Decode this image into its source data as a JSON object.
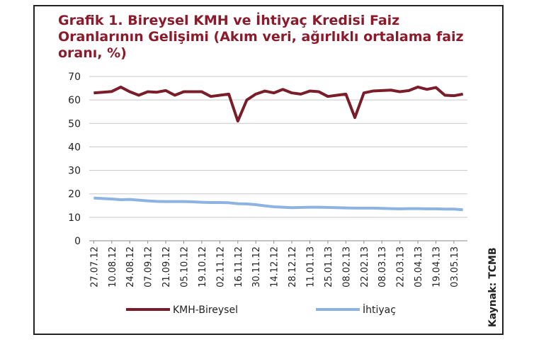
{
  "chart_data": {
    "type": "line",
    "title": "Grafik 1. Bireysel KMH ve İhtiyaç Kredisi Faiz Oranlarının Gelişimi (Akım veri, ağırlıklı ortalama faiz oranı, %)",
    "source": "Kaynak: TCMB",
    "categories": [
      "27.07.12",
      null,
      "10.08.12",
      null,
      "24.08.12",
      null,
      "07.09.12",
      null,
      "21.09.12",
      null,
      "05.10.12",
      null,
      "19.10.12",
      null,
      "02.11.12",
      null,
      "16.11.12",
      null,
      "30.11.12",
      null,
      "14.12.12",
      null,
      "28.12.12",
      null,
      "11.01.13",
      null,
      "25.01.13",
      null,
      "08.02.13",
      null,
      "22.02.13",
      null,
      "08.03.13",
      null,
      "22.03.13",
      null,
      "05.04.13",
      null,
      "19.04.13",
      null,
      "03.05.13",
      null
    ],
    "series": [
      {
        "name": "KMH-Bireysel",
        "color": "#7b1c2a",
        "values": [
          63,
          63.3,
          63.6,
          65.5,
          63.5,
          62,
          63.5,
          63.3,
          64,
          62,
          63.5,
          63.5,
          63.5,
          61.5,
          62,
          62.5,
          51,
          60,
          62.5,
          63.8,
          63,
          64.5,
          63,
          62.5,
          63.8,
          63.5,
          61.5,
          62,
          62.5,
          52.5,
          63,
          63.8,
          64,
          64.2,
          63.5,
          64,
          65.5,
          64.5,
          65.3,
          62,
          61.8,
          62.5
        ]
      },
      {
        "name": "İhtiyaç",
        "color": "#8db3e2",
        "values": [
          18.2,
          18,
          17.8,
          17.5,
          17.6,
          17.3,
          17,
          16.8,
          16.7,
          16.7,
          16.7,
          16.6,
          16.4,
          16.3,
          16.3,
          16.2,
          15.8,
          15.7,
          15.4,
          14.9,
          14.5,
          14.3,
          14.1,
          14.2,
          14.3,
          14.3,
          14.2,
          14.1,
          14,
          13.9,
          13.9,
          13.9,
          13.8,
          13.7,
          13.6,
          13.7,
          13.7,
          13.6,
          13.6,
          13.5,
          13.5,
          13.2
        ]
      }
    ],
    "ylim": [
      0,
      70
    ],
    "yticks": [
      0,
      10,
      20,
      30,
      40,
      50,
      60,
      70
    ],
    "grid": true
  }
}
